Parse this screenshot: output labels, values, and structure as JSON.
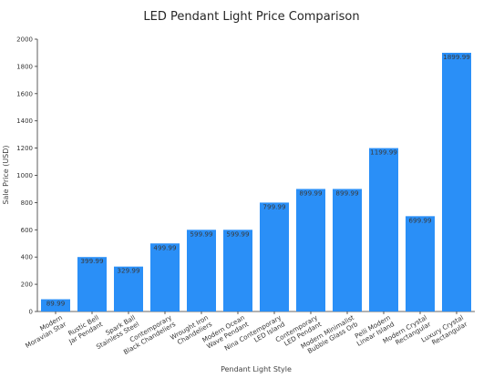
{
  "chart_data": {
    "type": "bar",
    "title": "LED Pendant Light Price Comparison",
    "xlabel": "Pendant Light Style",
    "ylabel": "Sale Price (USD)",
    "ylim": [
      0,
      2000
    ],
    "yticks": [
      0,
      200,
      400,
      600,
      800,
      1000,
      1200,
      1400,
      1600,
      1800,
      2000
    ],
    "categories": [
      "Modern\nMoravian Star",
      "Rustic Bell\nJar Pendant",
      "Spark Ball\nStainless Steel",
      "Contemporary\nBlack Chandeliers",
      "Wrought Iron\nChandeliers",
      "Modern Ocean\nWave Pendant",
      "Nina Contemporary\nLED Island",
      "Contemporary\nLED Pendant",
      "Modern Minimalist\nBubble Glass Orb",
      "Pelli Modern\nLinear Island",
      "Modern Crystal\nRectangular",
      "Luxury Crystal\nRectangular"
    ],
    "values": [
      89.99,
      399.99,
      329.99,
      499.99,
      599.99,
      599.99,
      799.99,
      899.99,
      899.99,
      1199.99,
      699.99,
      1899.99
    ],
    "data_labels": [
      "89.99",
      "399.99",
      "329.99",
      "499.99",
      "599.99",
      "599.99",
      "799.99",
      "899.99",
      "899.99",
      "1199.99",
      "699.99",
      "1899.99"
    ],
    "bar_color": "#2a8ff7",
    "grid": false,
    "legend": "none"
  }
}
